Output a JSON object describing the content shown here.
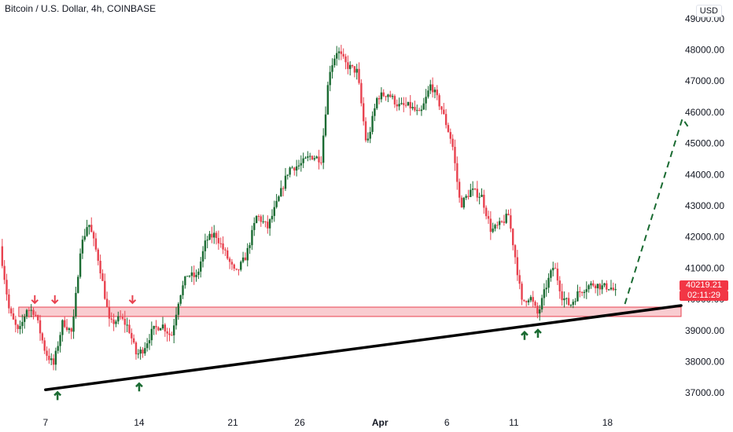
{
  "header": {
    "title": "Bitcoin / U.S. Dollar, 4h, COINBASE",
    "currency": "USD"
  },
  "price_tag": {
    "price": "40219.21",
    "countdown": "02:11:29"
  },
  "colors": {
    "up": "#1a6b32",
    "down": "#e8424f",
    "zone": "#f4a3a9",
    "trendline": "#000000",
    "projection": "#1a6b32",
    "axis_text": "#131722"
  },
  "chart_data": {
    "type": "candlestick",
    "symbol": "Bitcoin / U.S. Dollar",
    "interval": "4h",
    "exchange": "COINBASE",
    "currency": "USD",
    "ylim": [
      36400,
      49600
    ],
    "y_ticks": [
      "37000.00",
      "38000.00",
      "39000.00",
      "40000.00",
      "41000.00",
      "42000.00",
      "43000.00",
      "44000.00",
      "45000.00",
      "46000.00",
      "47000.00",
      "48000.00",
      "49000.00"
    ],
    "x_ticks": [
      {
        "label": "7",
        "day": 7
      },
      {
        "label": "14",
        "day": 14
      },
      {
        "label": "21",
        "day": 21
      },
      {
        "label": "26",
        "day": 26
      },
      {
        "label": "Apr",
        "day": 32
      },
      {
        "label": "6",
        "day": 37
      },
      {
        "label": "11",
        "day": 42
      },
      {
        "label": "18",
        "day": 49
      }
    ],
    "xlim_day": [
      3.6,
      54.5
    ],
    "last_price": 40219.21,
    "support_zone": {
      "low": 39450,
      "high": 39750,
      "from_day": 5,
      "to_day": 54.5
    },
    "trendline": {
      "from": {
        "day": 7,
        "price": 37100
      },
      "to": {
        "day": 54.5,
        "price": 39800
      }
    },
    "projection": [
      {
        "day": 50.3,
        "price": 39850
      },
      {
        "day": 54.6,
        "price": 45800
      },
      {
        "day": 55.0,
        "price": 45550
      }
    ],
    "down_arrows": [
      {
        "day": 6.2,
        "price": 39880
      },
      {
        "day": 7.7,
        "price": 39880
      },
      {
        "day": 13.5,
        "price": 39880
      }
    ],
    "up_arrows": [
      {
        "day": 7.9,
        "price": 37020
      },
      {
        "day": 14.0,
        "price": 37300
      },
      {
        "day": 42.8,
        "price": 38950
      },
      {
        "day": 43.8,
        "price": 39020
      }
    ],
    "path": [
      [
        3.6,
        41700
      ],
      [
        4.3,
        39600
      ],
      [
        5.0,
        38900
      ],
      [
        5.6,
        39700
      ],
      [
        6.2,
        39600
      ],
      [
        7.0,
        38300
      ],
      [
        7.6,
        37900
      ],
      [
        8.3,
        39300
      ],
      [
        9.0,
        38900
      ],
      [
        9.6,
        41600
      ],
      [
        10.2,
        42500
      ],
      [
        11.0,
        41200
      ],
      [
        11.8,
        39200
      ],
      [
        12.6,
        39400
      ],
      [
        13.2,
        39100
      ],
      [
        13.8,
        38200
      ],
      [
        14.3,
        38400
      ],
      [
        15.0,
        39000
      ],
      [
        15.7,
        39200
      ],
      [
        16.4,
        38800
      ],
      [
        17.0,
        40100
      ],
      [
        17.6,
        40800
      ],
      [
        18.3,
        40700
      ],
      [
        19.0,
        41900
      ],
      [
        19.7,
        42100
      ],
      [
        20.4,
        41500
      ],
      [
        21.2,
        40800
      ],
      [
        22.0,
        41400
      ],
      [
        22.8,
        42700
      ],
      [
        23.6,
        42300
      ],
      [
        24.4,
        43200
      ],
      [
        25.2,
        44200
      ],
      [
        26.0,
        44300
      ],
      [
        26.8,
        44600
      ],
      [
        27.6,
        44500
      ],
      [
        28.2,
        47300
      ],
      [
        28.8,
        48000
      ],
      [
        29.5,
        47500
      ],
      [
        30.3,
        47300
      ],
      [
        31.0,
        44900
      ],
      [
        31.8,
        46500
      ],
      [
        32.6,
        46600
      ],
      [
        33.4,
        46200
      ],
      [
        34.2,
        46200
      ],
      [
        35.0,
        45900
      ],
      [
        35.8,
        46900
      ],
      [
        36.6,
        46100
      ],
      [
        37.4,
        45000
      ],
      [
        38.0,
        43000
      ],
      [
        38.8,
        43500
      ],
      [
        39.6,
        43300
      ],
      [
        40.3,
        42200
      ],
      [
        41.0,
        42400
      ],
      [
        41.6,
        42700
      ],
      [
        42.2,
        41100
      ],
      [
        42.6,
        39900
      ],
      [
        43.2,
        40100
      ],
      [
        43.8,
        39500
      ],
      [
        44.4,
        40400
      ],
      [
        45.0,
        41100
      ],
      [
        45.6,
        40100
      ],
      [
        46.2,
        39800
      ],
      [
        46.8,
        40200
      ],
      [
        47.4,
        40400
      ],
      [
        48.0,
        40500
      ],
      [
        48.6,
        40400
      ],
      [
        49.2,
        40400
      ],
      [
        49.6,
        40219
      ]
    ]
  }
}
